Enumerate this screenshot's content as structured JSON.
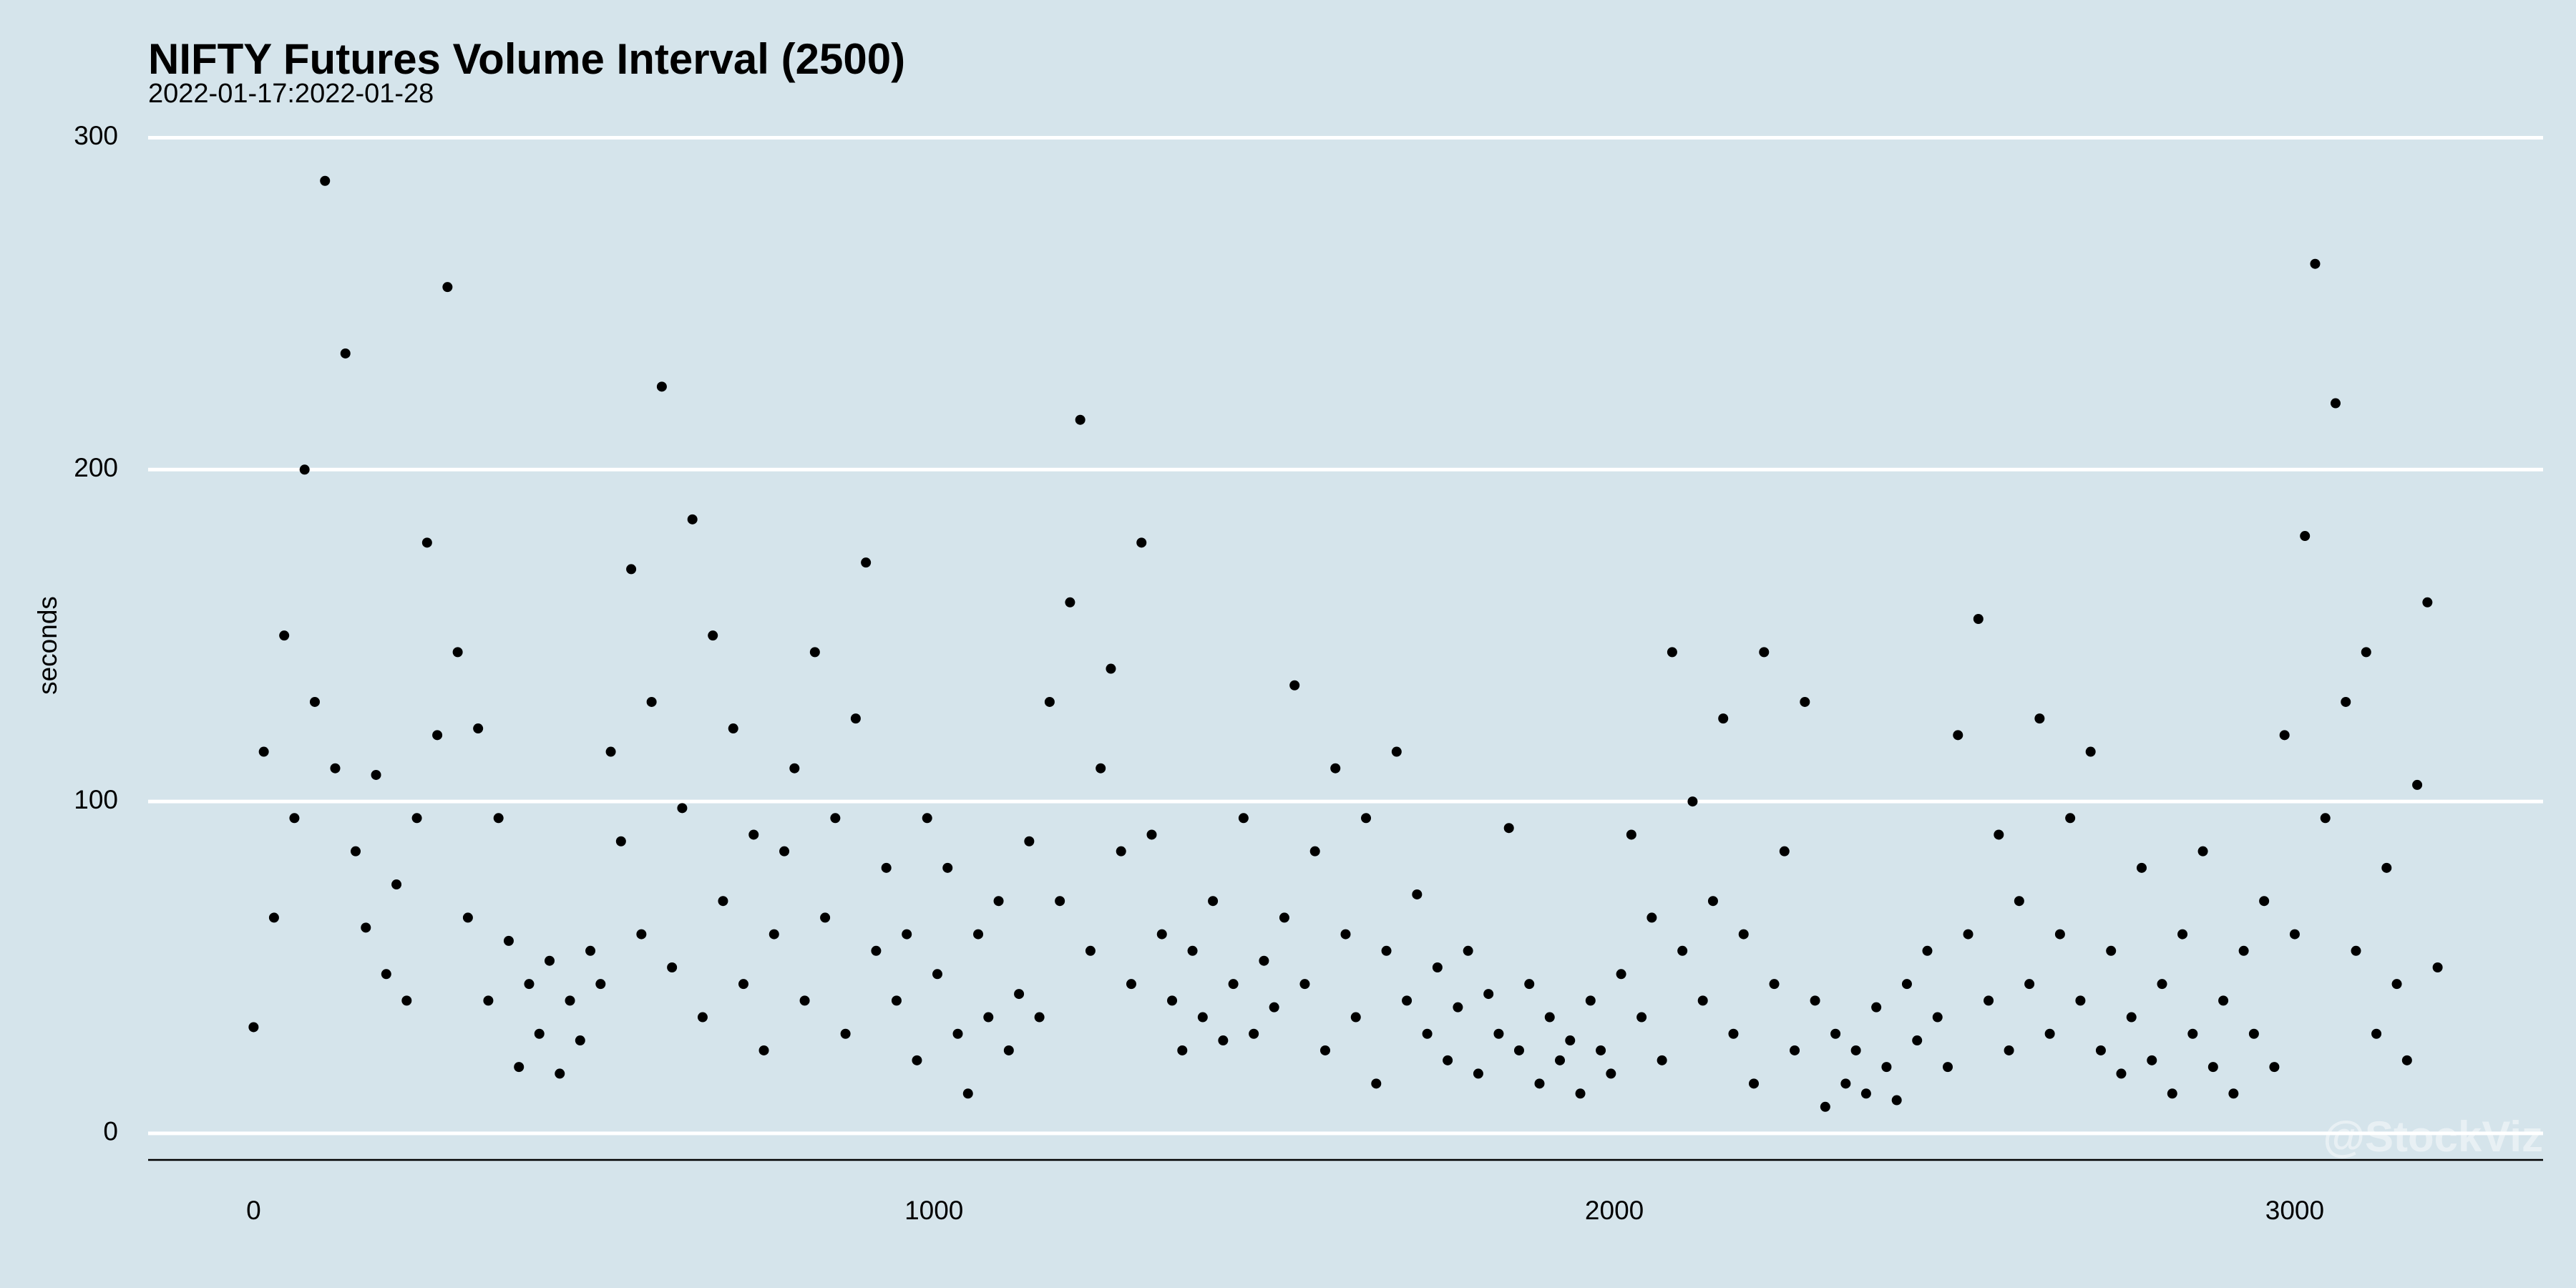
{
  "chart_data": {
    "type": "scatter",
    "title": "NIFTY Futures Volume Interval (2500)",
    "subtitle": "2022-01-17:2022-01-28",
    "ylabel": "seconds",
    "annotation": "@StockViz",
    "color": "#000000",
    "grid": true,
    "xlim": [
      -155,
      3365
    ],
    "ylim": [
      -8,
      307
    ],
    "xticks": [
      0,
      1000,
      2000,
      3000
    ],
    "yticks": [
      0,
      100,
      200,
      300
    ],
    "x": [
      0,
      15,
      30,
      45,
      60,
      75,
      90,
      105,
      120,
      135,
      150,
      165,
      180,
      195,
      210,
      225,
      240,
      255,
      270,
      285,
      300,
      315,
      330,
      345,
      360,
      375,
      390,
      405,
      420,
      435,
      450,
      465,
      480,
      495,
      510,
      525,
      540,
      555,
      570,
      585,
      600,
      615,
      630,
      645,
      660,
      675,
      690,
      705,
      720,
      735,
      750,
      765,
      780,
      795,
      810,
      825,
      840,
      855,
      870,
      885,
      900,
      915,
      930,
      945,
      960,
      975,
      990,
      1005,
      1020,
      1035,
      1050,
      1065,
      1080,
      1095,
      1110,
      1125,
      1140,
      1155,
      1170,
      1185,
      1200,
      1215,
      1230,
      1245,
      1260,
      1275,
      1290,
      1305,
      1320,
      1335,
      1350,
      1365,
      1380,
      1395,
      1410,
      1425,
      1440,
      1455,
      1470,
      1485,
      1500,
      1515,
      1530,
      1545,
      1560,
      1575,
      1590,
      1605,
      1620,
      1635,
      1650,
      1665,
      1680,
      1695,
      1710,
      1725,
      1740,
      1755,
      1770,
      1785,
      1800,
      1815,
      1830,
      1845,
      1860,
      1875,
      1890,
      1905,
      1920,
      1935,
      1950,
      1965,
      1980,
      1995,
      2010,
      2025,
      2040,
      2055,
      2070,
      2085,
      2100,
      2115,
      2130,
      2145,
      2160,
      2175,
      2190,
      2205,
      2220,
      2235,
      2250,
      2265,
      2280,
      2295,
      2310,
      2325,
      2340,
      2355,
      2370,
      2385,
      2400,
      2415,
      2430,
      2445,
      2460,
      2475,
      2490,
      2505,
      2520,
      2535,
      2550,
      2565,
      2580,
      2595,
      2610,
      2625,
      2640,
      2655,
      2670,
      2685,
      2700,
      2715,
      2730,
      2745,
      2760,
      2775,
      2790,
      2805,
      2820,
      2835,
      2850,
      2865,
      2880,
      2895,
      2910,
      2925,
      2940,
      2955,
      2970,
      2985,
      3000,
      3015,
      3030,
      3045,
      3060,
      3075,
      3090,
      3105,
      3120,
      3135,
      3150,
      3165,
      3180,
      3195,
      3210
    ],
    "values": [
      32,
      115,
      65,
      150,
      95,
      200,
      130,
      287,
      110,
      235,
      85,
      62,
      108,
      48,
      75,
      40,
      95,
      178,
      120,
      255,
      145,
      65,
      122,
      40,
      95,
      58,
      20,
      45,
      30,
      52,
      18,
      40,
      28,
      55,
      45,
      115,
      88,
      170,
      60,
      130,
      225,
      50,
      98,
      185,
      35,
      150,
      70,
      122,
      45,
      90,
      25,
      60,
      85,
      110,
      40,
      145,
      65,
      95,
      30,
      125,
      172,
      55,
      80,
      40,
      60,
      22,
      95,
      48,
      80,
      30,
      12,
      60,
      35,
      70,
      25,
      42,
      88,
      35,
      130,
      70,
      160,
      215,
      55,
      110,
      140,
      85,
      45,
      178,
      90,
      60,
      40,
      25,
      55,
      35,
      70,
      28,
      45,
      95,
      30,
      52,
      38,
      65,
      135,
      45,
      85,
      25,
      110,
      60,
      35,
      95,
      15,
      55,
      115,
      40,
      72,
      30,
      50,
      22,
      38,
      55,
      18,
      42,
      30,
      92,
      25,
      45,
      15,
      35,
      22,
      28,
      12,
      40,
      25,
      18,
      48,
      90,
      35,
      65,
      22,
      145,
      55,
      100,
      40,
      70,
      125,
      30,
      60,
      15,
      145,
      45,
      85,
      25,
      130,
      40,
      8,
      30,
      15,
      25,
      12,
      38,
      20,
      10,
      45,
      28,
      55,
      35,
      20,
      120,
      60,
      155,
      40,
      90,
      25,
      70,
      45,
      125,
      30,
      60,
      95,
      40,
      115,
      25,
      55,
      18,
      35,
      80,
      22,
      45,
      12,
      60,
      30,
      85,
      20,
      40,
      12,
      55,
      30,
      70,
      20,
      120,
      60,
      180,
      262,
      95,
      220,
      130,
      55,
      145,
      30,
      80,
      45,
      22,
      105,
      160,
      50
    ]
  }
}
